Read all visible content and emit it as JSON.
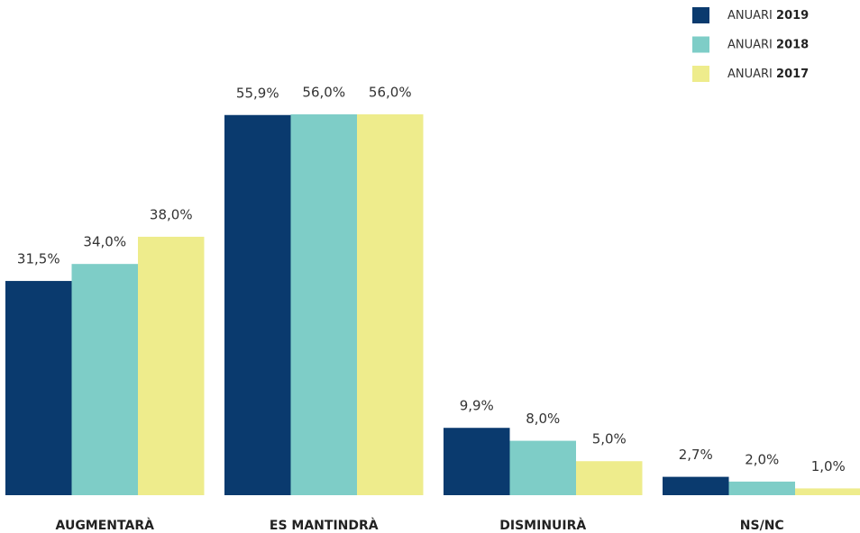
{
  "chart_data": {
    "type": "bar",
    "categories": [
      "AUGMENTARÀ",
      "ES MANTINDRÀ",
      "DISMINUIRÀ",
      "NS/NC"
    ],
    "series": [
      {
        "name": "ANUARI 2019",
        "color": "#0a3a6e",
        "values": [
          31.5,
          55.9,
          9.9,
          2.7
        ],
        "value_labels": [
          "31,5%",
          "55,9%",
          "9,9%",
          "2,7%"
        ]
      },
      {
        "name": "ANUARI 2018",
        "color": "#7ecdc7",
        "values": [
          34.0,
          56.0,
          8.0,
          2.0
        ],
        "value_labels": [
          "34,0%",
          "56,0%",
          "8,0%",
          "2,0%"
        ]
      },
      {
        "name": "ANUARI 2017",
        "color": "#eeec8c",
        "values": [
          38.0,
          56.0,
          5.0,
          1.0
        ],
        "value_labels": [
          "38,0%",
          "56,0%",
          "5,0%",
          "1,0%"
        ]
      }
    ],
    "legend": "top-right"
  }
}
